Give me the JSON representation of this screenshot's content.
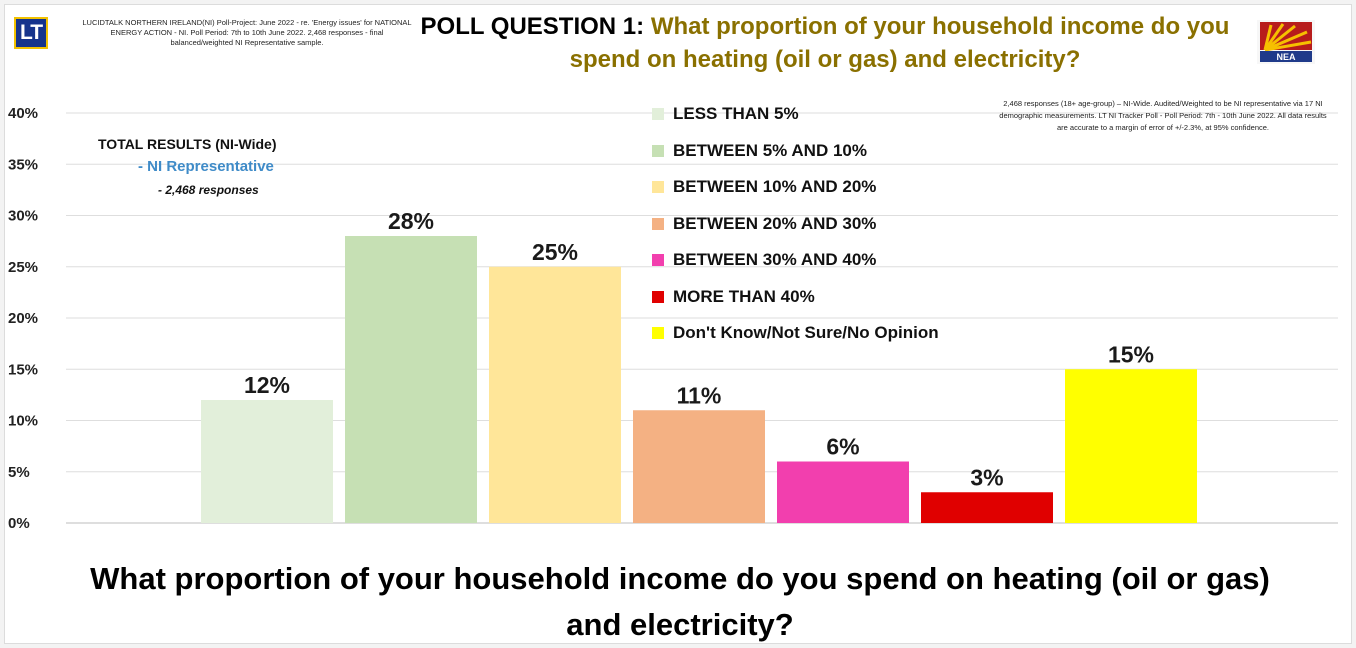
{
  "header": {
    "logo_text": "LT",
    "meta_text": "LUCIDTALK NORTHERN IRELAND(NI) Poll-Project: June 2022 - re. 'Energy issues' for NATIONAL ENERGY ACTION - NI. Poll Period: 7th to 10th June 2022. 2,468 responses - final balanced/weighted NI Representative sample.",
    "poll_prefix": "POLL QUESTION 1:",
    "poll_question": "What proportion of your household income do you spend on heating (oil or gas) and electricity?",
    "nea_logo_text": "NEA"
  },
  "total_block": {
    "title": "TOTAL RESULTS (NI-Wide)",
    "subtitle": "- NI Representative",
    "count": "- 2,468 responses"
  },
  "note_text": "2,468 responses (18+ age-group) – NI-Wide. Audited/Weighted to be NI representative via 17 NI demographic measurements. LT NI Tracker Poll - Poll Period: 7th - 10th June 2022. All data results are accurate to a margin of error of +/-2.3%, at 95% confidence.",
  "bottom_question": "What proportion of your household income do you spend on heating (oil or gas) and electricity?",
  "chart_data": {
    "type": "bar",
    "categories": [
      "LESS THAN 5%",
      "BETWEEN 5% AND 10%",
      "BETWEEN 10% AND 20%",
      "BETWEEN 20% AND 30%",
      "BETWEEN 30% AND 40%",
      "MORE THAN 40%",
      "Don't Know/Not Sure/No Opinion"
    ],
    "values": [
      12,
      28,
      25,
      11,
      6,
      3,
      15
    ],
    "data_labels": [
      "12%",
      "28%",
      "25%",
      "11%",
      "6%",
      "3%",
      "15%"
    ],
    "colors": [
      "#e2efda",
      "#c6e0b4",
      "#ffe699",
      "#f4b183",
      "#f23fae",
      "#e00000",
      "#ffff00"
    ],
    "ylim": [
      0,
      40
    ],
    "yticks": [
      "0%",
      "5%",
      "10%",
      "15%",
      "20%",
      "25%",
      "30%",
      "35%",
      "40%"
    ],
    "grid": true,
    "legend_position": "top-center"
  }
}
